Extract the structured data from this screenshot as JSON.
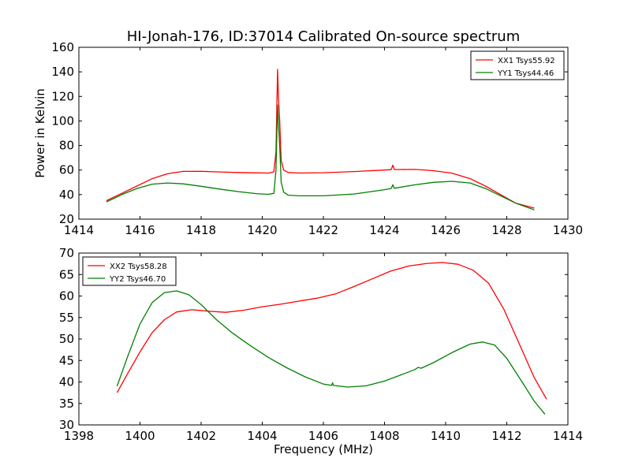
{
  "title": "HI-Jonah-176, ID:37014 Calibrated On-source spectrum",
  "colors": {
    "red": "#ff0000",
    "green": "#008000"
  },
  "chart_data": [
    {
      "type": "line",
      "ylabel": "Power in Kelvin",
      "xlabel": "",
      "xlim": [
        1414,
        1430
      ],
      "ylim": [
        20,
        160
      ],
      "xticks": [
        "1414",
        "1416",
        "1418",
        "1420",
        "1422",
        "1424",
        "1426",
        "1428",
        "1430"
      ],
      "yticks": [
        "20",
        "40",
        "60",
        "80",
        "100",
        "120",
        "140",
        "160"
      ],
      "legend_position": "top-right",
      "series": [
        {
          "name": "XX1 Tsys55.92",
          "color": "#ff0000",
          "x": [
            1414.9,
            1415.4,
            1415.9,
            1416.4,
            1416.9,
            1417.4,
            1418.0,
            1418.6,
            1419.2,
            1419.8,
            1420.2,
            1420.38,
            1420.45,
            1420.5,
            1420.53,
            1420.57,
            1420.62,
            1420.7,
            1420.85,
            1421.2,
            1422.0,
            1423.0,
            1424.0,
            1424.22,
            1424.27,
            1424.32,
            1425.0,
            1425.6,
            1426.2,
            1426.8,
            1427.3,
            1427.8,
            1428.3,
            1428.9
          ],
          "y": [
            35,
            41,
            47,
            53,
            57,
            58.9,
            59,
            58.5,
            58,
            57.7,
            57.6,
            58.5,
            75,
            142,
            120,
            100,
            68,
            60,
            58,
            57.6,
            57.8,
            58.8,
            60,
            60.3,
            64,
            60.4,
            60.5,
            59.5,
            57.5,
            53,
            47,
            40,
            33,
            29
          ]
        },
        {
          "name": "YY1 Tsys44.46",
          "color": "#008000",
          "x": [
            1414.9,
            1415.4,
            1415.9,
            1416.4,
            1416.9,
            1417.4,
            1418.0,
            1418.6,
            1419.2,
            1419.8,
            1420.2,
            1420.38,
            1420.45,
            1420.5,
            1420.53,
            1420.57,
            1420.62,
            1420.7,
            1420.85,
            1421.2,
            1422.0,
            1423.0,
            1424.0,
            1424.22,
            1424.27,
            1424.32,
            1425.0,
            1425.6,
            1426.2,
            1426.8,
            1427.3,
            1427.8,
            1428.3,
            1428.9
          ],
          "y": [
            34,
            40,
            45,
            48.5,
            49.5,
            48.8,
            46.8,
            44.5,
            42.5,
            40.8,
            40.2,
            41,
            60,
            113,
            98,
            80,
            50,
            42,
            39.5,
            39,
            39,
            40.5,
            44,
            45,
            48,
            45.2,
            48,
            50,
            50.8,
            49.5,
            45,
            39,
            33,
            27.5
          ]
        }
      ]
    },
    {
      "type": "line",
      "ylabel": "",
      "xlabel": "Frequency (MHz)",
      "xlim": [
        1398,
        1414
      ],
      "ylim": [
        30,
        70
      ],
      "xticks": [
        "1398",
        "1400",
        "1402",
        "1404",
        "1406",
        "1408",
        "1410",
        "1412",
        "1414"
      ],
      "yticks": [
        "30",
        "35",
        "40",
        "45",
        "50",
        "55",
        "60",
        "65",
        "70"
      ],
      "legend_position": "top-left",
      "series": [
        {
          "name": "XX2 Tsys58.28",
          "color": "#ff0000",
          "x": [
            1399.25,
            1399.6,
            1400.0,
            1400.4,
            1400.8,
            1401.2,
            1401.7,
            1402.2,
            1402.8,
            1403.4,
            1404.0,
            1404.6,
            1405.2,
            1405.8,
            1406.4,
            1407.0,
            1407.6,
            1408.2,
            1408.8,
            1409.4,
            1409.9,
            1410.4,
            1410.9,
            1411.4,
            1411.9,
            1412.4,
            1412.9,
            1413.3
          ],
          "y": [
            37.5,
            42,
            47,
            51.5,
            54.5,
            56.3,
            56.8,
            56.5,
            56.2,
            56.7,
            57.5,
            58.1,
            58.8,
            59.5,
            60.5,
            62.2,
            64,
            65.8,
            67,
            67.6,
            67.8,
            67.4,
            66,
            63,
            57,
            49,
            41,
            36
          ]
        },
        {
          "name": "YY2 Tsys46.70",
          "color": "#008000",
          "x": [
            1399.25,
            1399.6,
            1400.0,
            1400.4,
            1400.8,
            1401.2,
            1401.6,
            1402.0,
            1402.5,
            1403.0,
            1403.6,
            1404.2,
            1404.8,
            1405.4,
            1406.0,
            1406.27,
            1406.3,
            1406.33,
            1406.8,
            1407.4,
            1408.0,
            1408.6,
            1409.0,
            1409.1,
            1409.2,
            1409.6,
            1410.2,
            1410.8,
            1411.2,
            1411.6,
            1412.0,
            1412.5,
            1412.9,
            1413.25
          ],
          "y": [
            39,
            46,
            53.5,
            58.5,
            60.8,
            61.2,
            60.3,
            58,
            54.5,
            51.5,
            48.5,
            45.7,
            43.3,
            41.2,
            39.5,
            39.2,
            39.8,
            39.2,
            38.8,
            39.1,
            40.2,
            41.8,
            42.9,
            43.4,
            43.2,
            44.5,
            46.8,
            48.8,
            49.3,
            48.6,
            45.5,
            40,
            35.5,
            32.5
          ]
        }
      ]
    }
  ]
}
